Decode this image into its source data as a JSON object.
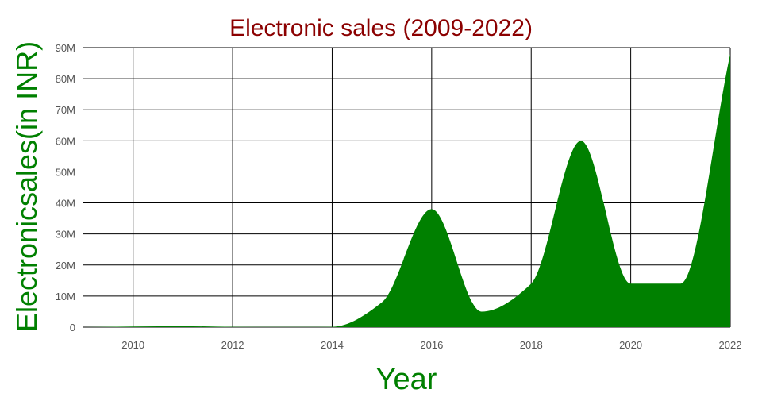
{
  "colors": {
    "title": "#8b0000",
    "axis_title": "#008000",
    "area_fill": "#008000",
    "grid": "#000000",
    "tick_text": "#555555",
    "background": "#ffffff"
  },
  "chart_data": {
    "type": "area",
    "title": "Electronic sales (2009-2022)",
    "xlabel": "Year",
    "ylabel": "Electronicsales(in INR)",
    "xlim": [
      2009,
      2022
    ],
    "ylim": [
      0,
      90000000
    ],
    "x_ticks": [
      2010,
      2012,
      2014,
      2016,
      2018,
      2020,
      2022
    ],
    "y_ticks": [
      0,
      10000000,
      20000000,
      30000000,
      40000000,
      50000000,
      60000000,
      70000000,
      80000000,
      90000000
    ],
    "y_tick_labels": [
      "0",
      "10M",
      "20M",
      "30M",
      "40M",
      "50M",
      "60M",
      "70M",
      "80M",
      "90M"
    ],
    "grid": true,
    "legend": "none",
    "series": [
      {
        "x": [
          2009,
          2010,
          2011,
          2012,
          2013,
          2014,
          2015,
          2016,
          2017,
          2018,
          2019,
          2020,
          2021,
          2022
        ],
        "values": [
          0,
          200000,
          300000,
          100000,
          50000,
          100000,
          8000000,
          38000000,
          5000000,
          14000000,
          60000000,
          14000000,
          14000000,
          88000000
        ]
      }
    ]
  }
}
